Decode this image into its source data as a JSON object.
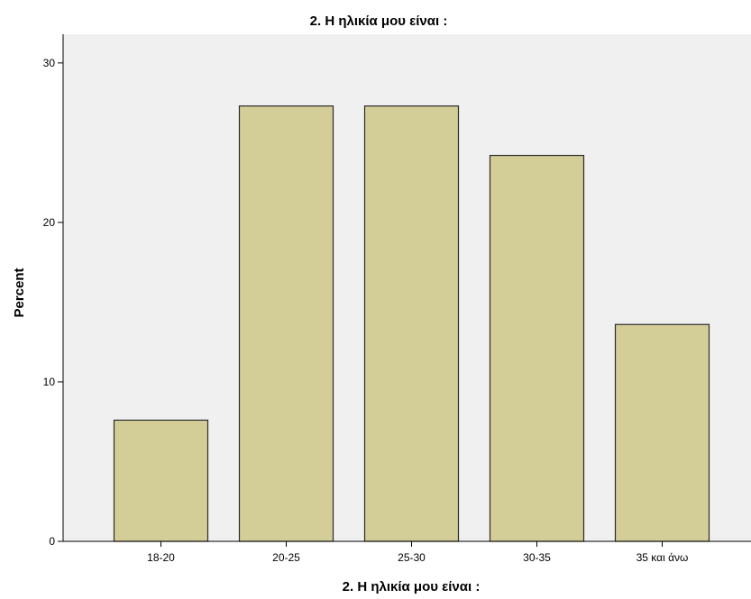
{
  "chart_data": {
    "type": "bar",
    "title": "2. Η ηλικία μου είναι :",
    "xlabel": "2. Η ηλικία μου είναι :",
    "ylabel": "Percent",
    "categories": [
      "18-20",
      "20-25",
      "25-30",
      "30-35",
      "35 και άνω"
    ],
    "values": [
      7.6,
      27.3,
      27.3,
      24.2,
      13.6
    ],
    "ylim": [
      0,
      31.8
    ],
    "yticks": [
      0,
      10,
      20,
      30
    ],
    "grid": false,
    "legend": "none",
    "colors": {
      "bar_fill": "#d3ce97",
      "bar_stroke": "#2b2b2b",
      "plot_background": "#f0f0f0",
      "axis": "#000000"
    }
  }
}
